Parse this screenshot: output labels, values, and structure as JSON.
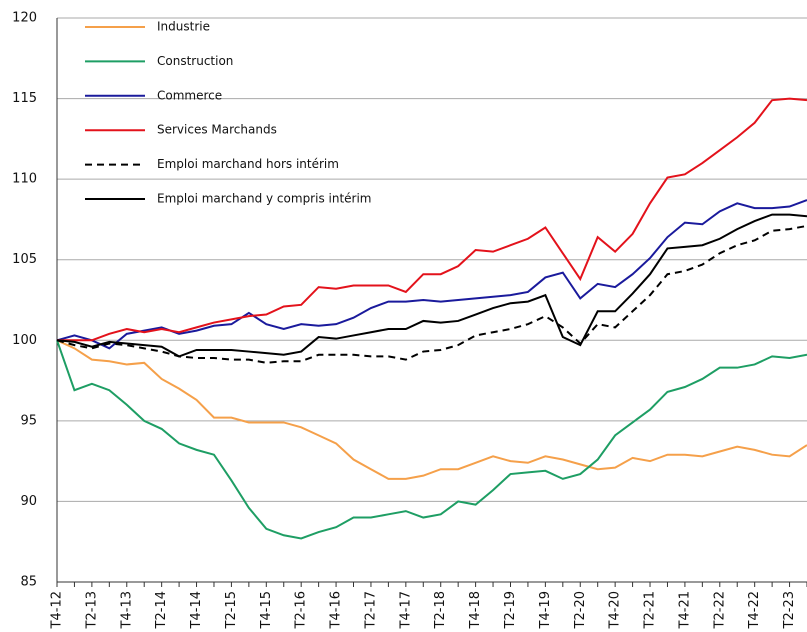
{
  "chart_data": {
    "type": "line",
    "categories": [
      "T4-12",
      null,
      "T2-13",
      null,
      "T4-13",
      null,
      "T2-14",
      null,
      "T4-14",
      null,
      "T2-15",
      null,
      "T4-15",
      null,
      "T2-16",
      null,
      "T4-16",
      null,
      "T2-17",
      null,
      "T4-17",
      null,
      "T2-18",
      null,
      "T4-18",
      null,
      "T2-19",
      null,
      "T4-19",
      null,
      "T2-20",
      null,
      "T4-20",
      null,
      "T2-21",
      null,
      "T4-21",
      null,
      "T2-22",
      null,
      "T4-22",
      null,
      "T2-23",
      null
    ],
    "series": [
      {
        "name": "Industrie",
        "color": "#f5a04a",
        "dashed": false,
        "values": [
          100,
          99.5,
          98.8,
          98.7,
          98.5,
          98.6,
          97.6,
          97.0,
          96.3,
          95.2,
          95.2,
          94.9,
          94.9,
          94.9,
          94.6,
          94.1,
          93.6,
          92.6,
          92.0,
          91.4,
          91.4,
          91.6,
          92.0,
          92.0,
          92.4,
          92.8,
          92.5,
          92.4,
          92.8,
          92.6,
          92.3,
          92.0,
          92.1,
          92.7,
          92.5,
          92.9,
          92.9,
          92.8,
          93.1,
          93.4,
          93.2,
          92.9,
          92.8,
          93.5
        ]
      },
      {
        "name": "Construction",
        "color": "#1e9e64",
        "dashed": false,
        "values": [
          100,
          96.9,
          97.3,
          96.9,
          96.0,
          95.0,
          94.5,
          93.6,
          93.2,
          92.9,
          91.3,
          89.6,
          88.3,
          87.9,
          87.7,
          88.1,
          88.4,
          89.0,
          89.0,
          89.2,
          89.4,
          89.0,
          89.2,
          90.0,
          89.8,
          90.7,
          91.7,
          91.8,
          91.9,
          91.4,
          91.7,
          92.6,
          94.1,
          94.9,
          95.7,
          96.8,
          97.1,
          97.6,
          98.3,
          98.3,
          98.5,
          99.0,
          98.9,
          99.1
        ]
      },
      {
        "name": "Commerce",
        "color": "#1a1a9c",
        "dashed": false,
        "values": [
          100,
          100.3,
          100.0,
          99.5,
          100.4,
          100.6,
          100.8,
          100.4,
          100.6,
          100.9,
          101.0,
          101.7,
          101.0,
          100.7,
          101.0,
          100.9,
          101.0,
          101.4,
          102.0,
          102.4,
          102.4,
          102.5,
          102.4,
          102.5,
          102.6,
          102.7,
          102.8,
          103.0,
          103.9,
          104.2,
          102.6,
          103.5,
          103.3,
          104.1,
          105.1,
          106.4,
          107.3,
          107.2,
          108.0,
          108.5,
          108.2,
          108.2,
          108.3,
          108.7
        ]
      },
      {
        "name": "Services Marchands",
        "color": "#e3121b",
        "dashed": false,
        "values": [
          100,
          100.0,
          100.0,
          100.4,
          100.7,
          100.5,
          100.7,
          100.5,
          100.8,
          101.1,
          101.3,
          101.5,
          101.6,
          102.1,
          102.2,
          103.3,
          103.2,
          103.4,
          103.4,
          103.4,
          103.0,
          104.1,
          104.1,
          104.6,
          105.6,
          105.5,
          105.9,
          106.3,
          107.0,
          105.4,
          103.8,
          106.4,
          105.5,
          106.6,
          108.5,
          110.1,
          110.3,
          111.0,
          111.8,
          112.6,
          113.5,
          114.9,
          115.0,
          114.9
        ]
      },
      {
        "name": "Emploi marchand hors intérim",
        "color": "#000000",
        "dashed": true,
        "values": [
          100,
          99.7,
          99.5,
          99.8,
          99.7,
          99.5,
          99.3,
          99.0,
          98.9,
          98.9,
          98.8,
          98.8,
          98.6,
          98.7,
          98.7,
          99.1,
          99.1,
          99.1,
          99.0,
          99.0,
          98.8,
          99.3,
          99.4,
          99.7,
          100.3,
          100.5,
          100.7,
          101.0,
          101.5,
          100.8,
          99.8,
          101.0,
          100.8,
          101.8,
          102.8,
          104.1,
          104.3,
          104.7,
          105.4,
          105.9,
          106.2,
          106.8,
          106.9,
          107.1
        ]
      },
      {
        "name": "Emploi marchand y compris intérim",
        "color": "#000000",
        "dashed": false,
        "values": [
          100,
          99.9,
          99.6,
          99.9,
          99.8,
          99.7,
          99.6,
          99.0,
          99.4,
          99.4,
          99.4,
          99.3,
          99.2,
          99.1,
          99.3,
          100.2,
          100.1,
          100.3,
          100.5,
          100.7,
          100.7,
          101.2,
          101.1,
          101.2,
          101.6,
          102.0,
          102.3,
          102.4,
          102.8,
          100.2,
          99.7,
          101.8,
          101.8,
          102.9,
          104.1,
          105.7,
          105.8,
          105.9,
          106.3,
          106.9,
          107.4,
          107.8,
          107.8,
          107.7
        ]
      }
    ],
    "ylim": [
      85,
      120
    ],
    "yticks": [
      85,
      90,
      95,
      100,
      105,
      110,
      115,
      120
    ],
    "grid": true,
    "legend": "top-left"
  }
}
